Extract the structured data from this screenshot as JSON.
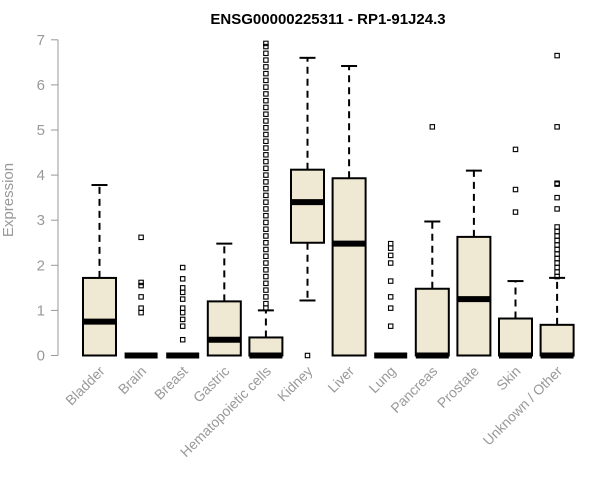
{
  "chart_data": {
    "type": "boxplot",
    "title": "ENSG00000225311 - RP1-91J24.3",
    "xlabel": "",
    "ylabel": "Expression",
    "ylim": [
      0,
      7
    ],
    "yticks": [
      0,
      1,
      2,
      3,
      4,
      5,
      6,
      7
    ],
    "grid": false,
    "categories": [
      "Bladder",
      "Brain",
      "Breast",
      "Gastric",
      "Hematopoietic cells",
      "Kidney",
      "Liver",
      "Lung",
      "Pancreas",
      "Prostate",
      "Skin",
      "Unknown / Other"
    ],
    "box_fill": "#efe8d2",
    "boxes": [
      {
        "min": 0,
        "q1": 0,
        "median": 0.75,
        "q3": 1.72,
        "max": 3.78,
        "outliers": []
      },
      {
        "min": 0,
        "q1": 0,
        "median": 0,
        "q3": 0,
        "max": 0,
        "outliers": [
          0.95,
          1.05,
          1.3,
          1.55,
          1.62,
          2.62
        ]
      },
      {
        "min": 0,
        "q1": 0,
        "median": 0,
        "q3": 0,
        "max": 0,
        "outliers": [
          0.35,
          0.65,
          0.8,
          0.95,
          1.05,
          1.25,
          1.4,
          1.5,
          1.7,
          1.95
        ]
      },
      {
        "min": 0,
        "q1": 0,
        "median": 0.35,
        "q3": 1.2,
        "max": 2.48,
        "outliers": []
      },
      {
        "min": 0,
        "q1": 0,
        "median": 0,
        "q3": 0.4,
        "max": 1.0,
        "outliers": [
          1.05,
          1.15,
          1.3,
          1.45,
          1.6,
          1.75,
          1.9,
          2.05,
          2.2,
          2.35,
          2.5,
          2.65,
          2.8,
          2.95,
          3.1,
          3.25,
          3.4,
          3.55,
          3.7,
          3.85,
          4.0,
          4.15,
          4.3,
          4.45,
          4.6,
          4.75,
          4.9,
          5.05,
          5.2,
          5.35,
          5.5,
          5.65,
          5.8,
          5.95,
          6.1,
          6.25,
          6.4,
          6.55,
          6.7,
          6.85,
          6.92
        ]
      },
      {
        "min": 1.22,
        "q1": 2.5,
        "median": 3.4,
        "q3": 4.12,
        "max": 6.6,
        "outliers": [
          0
        ]
      },
      {
        "min": 0,
        "q1": 0,
        "median": 2.48,
        "q3": 3.93,
        "max": 6.42,
        "outliers": []
      },
      {
        "min": 0,
        "q1": 0,
        "median": 0,
        "q3": 0,
        "max": 0,
        "outliers": [
          0.65,
          1.05,
          1.3,
          1.65,
          2.05,
          2.22,
          2.38,
          2.48
        ]
      },
      {
        "min": 0,
        "q1": 0,
        "median": 0,
        "q3": 1.48,
        "max": 2.97,
        "outliers": [
          5.07
        ]
      },
      {
        "min": 0,
        "q1": 0,
        "median": 1.25,
        "q3": 2.63,
        "max": 4.1,
        "outliers": []
      },
      {
        "min": 0,
        "q1": 0,
        "median": 0,
        "q3": 0.82,
        "max": 1.65,
        "outliers": [
          3.18,
          3.68,
          4.57
        ]
      },
      {
        "min": 0,
        "q1": 0,
        "median": 0,
        "q3": 0.68,
        "max": 1.72,
        "outliers": [
          1.75,
          1.85,
          1.95,
          2.05,
          2.15,
          2.25,
          2.35,
          2.45,
          2.55,
          2.65,
          2.75,
          2.85,
          3.25,
          3.5,
          3.8,
          3.82,
          5.07,
          6.65
        ]
      }
    ]
  }
}
